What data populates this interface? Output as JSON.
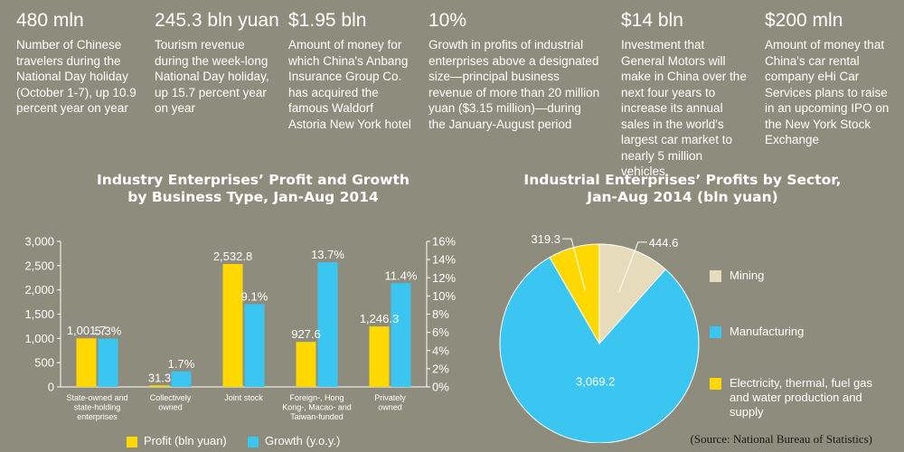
{
  "stats": [
    {
      "value": "480 mln",
      "text": "Number of Chinese travelers during the National Day holiday (October 1-7), up 10.9 percent year on year"
    },
    {
      "value": "245.3 bln yuan",
      "text": "Tourism revenue during the week-long National Day holiday, up 15.7 percent year on year"
    },
    {
      "value": "$1.95 bln",
      "text": "Amount of money for which China's Anbang Insurance Group Co. has acquired the famous Waldorf Astoria New York hotel"
    },
    {
      "value": "10%",
      "text": "Growth in profits of industrial enterprises above a designated size—principal business revenue of more than 20 million yuan ($3.15 million)—during the January-August period"
    },
    {
      "value": "$14 bln",
      "text": "Investment that General Motors will make in China over the next four years to increase its annual sales in the world's largest car market to nearly 5 million vehicles"
    },
    {
      "value": "$200 mln",
      "text": "Amount of money that China's car rental company eHi Car Services plans to raise in an upcoming IPO on the New York Stock Exchange"
    }
  ],
  "colors": {
    "background": "#8e8d7d",
    "profit": "#ffd800",
    "growth": "#3bc6f2",
    "mining": "#e6dcbb",
    "manufacturing": "#3bc6f2",
    "electricity": "#ffd800"
  },
  "chart_data": [
    {
      "type": "bar",
      "title_line1": "Industry Enterprises’ Profit and Growth",
      "title_line2": "by Business Type, Jan-Aug 2014",
      "categories": [
        [
          "State-owned and",
          "state-holding",
          "enterprises"
        ],
        [
          "Collectively",
          "owned"
        ],
        [
          "Joint stock"
        ],
        [
          "Foreign-, Hong",
          "Kong-, Macao- and",
          "Taiwan-funded"
        ],
        [
          "Privately",
          "owned"
        ]
      ],
      "series": [
        {
          "name": "Profit (bln yuan)",
          "axis": "left",
          "values": [
            1001.7,
            31.3,
            2532.8,
            927.6,
            1246.3
          ],
          "labels": [
            "1,001.7",
            "31.3",
            "2,532.8",
            "927.6",
            "1,246.3"
          ]
        },
        {
          "name": "Growth (y.o.y.)",
          "axis": "right",
          "values": [
            5.3,
            1.7,
            9.1,
            13.7,
            11.4
          ],
          "labels": [
            "5.3%",
            "1.7%",
            "9.1%",
            "13.7%",
            "11.4%"
          ]
        }
      ],
      "y_left": {
        "min": 0,
        "max": 3000,
        "ticks": [
          "0",
          "500",
          "1,000",
          "1,500",
          "2,000",
          "2,500",
          "3,000"
        ]
      },
      "y_right": {
        "min": 0,
        "max": 16,
        "ticks": [
          "0%",
          "2%",
          "4%",
          "6%",
          "8%",
          "10%",
          "12%",
          "14%",
          "16%"
        ]
      },
      "legend_position": "bottom"
    },
    {
      "type": "pie",
      "title_line1": "Industrial Enterprises’ Profits by Sector,",
      "title_line2": "Jan-Aug 2014 (bln yuan)",
      "slices": [
        {
          "name": "Mining",
          "value": 444.6,
          "label": "444.6"
        },
        {
          "name": "Manufacturing",
          "value": 3069.2,
          "label": "3,069.2"
        },
        {
          "name": "Electricity, thermal, fuel gas and water production and supply",
          "value": 319.3,
          "label": "319.3"
        }
      ],
      "legend_position": "right"
    }
  ],
  "source": "(Source: National Bureau of Statistics)"
}
